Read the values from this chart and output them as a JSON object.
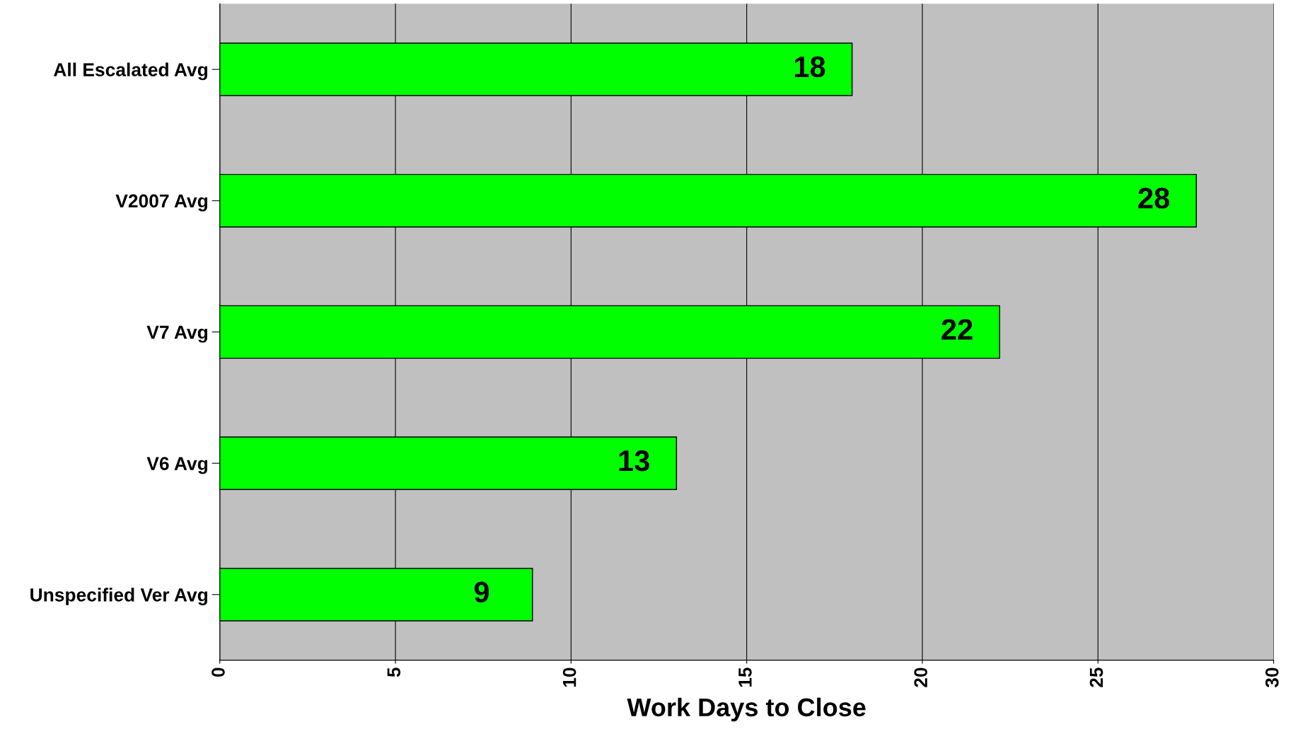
{
  "chart_data": {
    "type": "bar",
    "orientation": "horizontal",
    "xlabel": "Work Days to Close",
    "categories": [
      "All Escalated Avg",
      "V2007 Avg",
      "V7 Avg",
      "V6 Avg",
      "Unspecified Ver Avg"
    ],
    "values": [
      18,
      27.8,
      22.2,
      13,
      8.9
    ],
    "value_labels": [
      "18",
      "28",
      "22",
      "13",
      "9"
    ],
    "color": "#00ff00",
    "xlim": [
      0,
      30
    ],
    "xticks": [
      0,
      5,
      10,
      15,
      20,
      25,
      30
    ],
    "grid": "x"
  }
}
